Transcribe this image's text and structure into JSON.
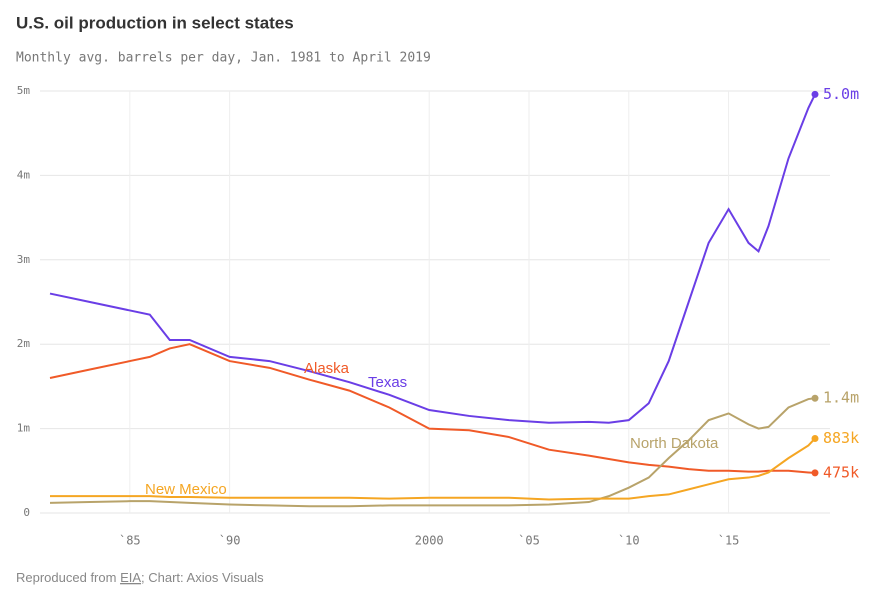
{
  "chart_data": {
    "type": "line",
    "title": "U.S. oil production in select states",
    "subtitle": "Monthly avg. barrels per day, Jan. 1981 to April 2019",
    "source_prefix": "Reproduced from ",
    "source_link": "EIA",
    "credit": "; Chart: Axios Visuals",
    "x": [
      1981,
      1983,
      1985,
      1986,
      1987,
      1988,
      1990,
      1992,
      1994,
      1996,
      1998,
      2000,
      2002,
      2004,
      2006,
      2008,
      2009,
      2010,
      2011,
      2012,
      2013,
      2014,
      2015,
      2016,
      2016.5,
      2017,
      2018,
      2019,
      2019.33
    ],
    "xlim": [
      1981,
      2019.33
    ],
    "xticks": [
      {
        "value": 1985,
        "label": "`85"
      },
      {
        "value": 1990,
        "label": "`90"
      },
      2000,
      {
        "value": 2005,
        "label": "`05"
      },
      {
        "value": 2010,
        "label": "`10"
      },
      {
        "value": 2015,
        "label": "`15"
      }
    ],
    "ylim": [
      0,
      5000000
    ],
    "yticks": [
      {
        "value": 0,
        "label": "0"
      },
      {
        "value": 1000000,
        "label": "1m"
      },
      {
        "value": 2000000,
        "label": "2m"
      },
      {
        "value": 3000000,
        "label": "3m"
      },
      {
        "value": 4000000,
        "label": "4m"
      },
      {
        "value": 5000000,
        "label": "5m"
      }
    ],
    "grid": true,
    "series": [
      {
        "name": "Texas",
        "color": "#6a3ee6",
        "values": [
          2600000,
          2500000,
          2400000,
          2350000,
          2050000,
          2050000,
          1850000,
          1800000,
          1680000,
          1550000,
          1400000,
          1220000,
          1150000,
          1100000,
          1070000,
          1080000,
          1070000,
          1100000,
          1300000,
          1800000,
          2500000,
          3200000,
          3600000,
          3200000,
          3100000,
          3400000,
          4200000,
          4800000,
          4960000
        ],
        "value_labels": [
          null,
          null,
          null,
          null,
          null,
          null,
          null,
          null,
          null,
          null,
          null,
          null,
          null,
          null,
          null,
          null,
          null,
          null,
          null,
          null,
          null,
          null,
          null,
          null,
          null,
          null,
          null,
          null,
          "5.0m"
        ]
      },
      {
        "name": "Alaska",
        "color": "#f05a28",
        "values": [
          1600000,
          1700000,
          1800000,
          1850000,
          1950000,
          2000000,
          1800000,
          1720000,
          1580000,
          1450000,
          1250000,
          1000000,
          980000,
          900000,
          750000,
          680000,
          640000,
          600000,
          570000,
          550000,
          520000,
          500000,
          500000,
          490000,
          490000,
          500000,
          500000,
          480000,
          475000
        ],
        "value_labels": [
          null,
          null,
          null,
          null,
          null,
          null,
          null,
          null,
          null,
          null,
          null,
          null,
          null,
          null,
          null,
          null,
          null,
          null,
          null,
          null,
          null,
          null,
          null,
          null,
          null,
          null,
          null,
          null,
          "475k"
        ]
      },
      {
        "name": "North Dakota",
        "color": "#b8a36a",
        "values": [
          120000,
          130000,
          140000,
          140000,
          130000,
          120000,
          100000,
          90000,
          80000,
          80000,
          90000,
          90000,
          90000,
          90000,
          100000,
          130000,
          200000,
          300000,
          420000,
          650000,
          860000,
          1100000,
          1180000,
          1050000,
          1000000,
          1020000,
          1250000,
          1350000,
          1360000
        ],
        "value_labels": [
          null,
          null,
          null,
          null,
          null,
          null,
          null,
          null,
          null,
          null,
          null,
          null,
          null,
          null,
          null,
          null,
          null,
          null,
          null,
          null,
          null,
          null,
          null,
          null,
          null,
          null,
          null,
          null,
          "1.4m"
        ]
      },
      {
        "name": "New Mexico",
        "color": "#f5a623",
        "values": [
          200000,
          200000,
          200000,
          200000,
          190000,
          190000,
          180000,
          180000,
          180000,
          180000,
          170000,
          180000,
          180000,
          180000,
          160000,
          170000,
          170000,
          170000,
          200000,
          220000,
          280000,
          340000,
          400000,
          420000,
          440000,
          480000,
          650000,
          800000,
          883000
        ],
        "value_labels": [
          null,
          null,
          null,
          null,
          null,
          null,
          null,
          null,
          null,
          null,
          null,
          null,
          null,
          null,
          null,
          null,
          null,
          null,
          null,
          null,
          null,
          null,
          null,
          null,
          null,
          null,
          null,
          null,
          "883k"
        ]
      }
    ]
  }
}
